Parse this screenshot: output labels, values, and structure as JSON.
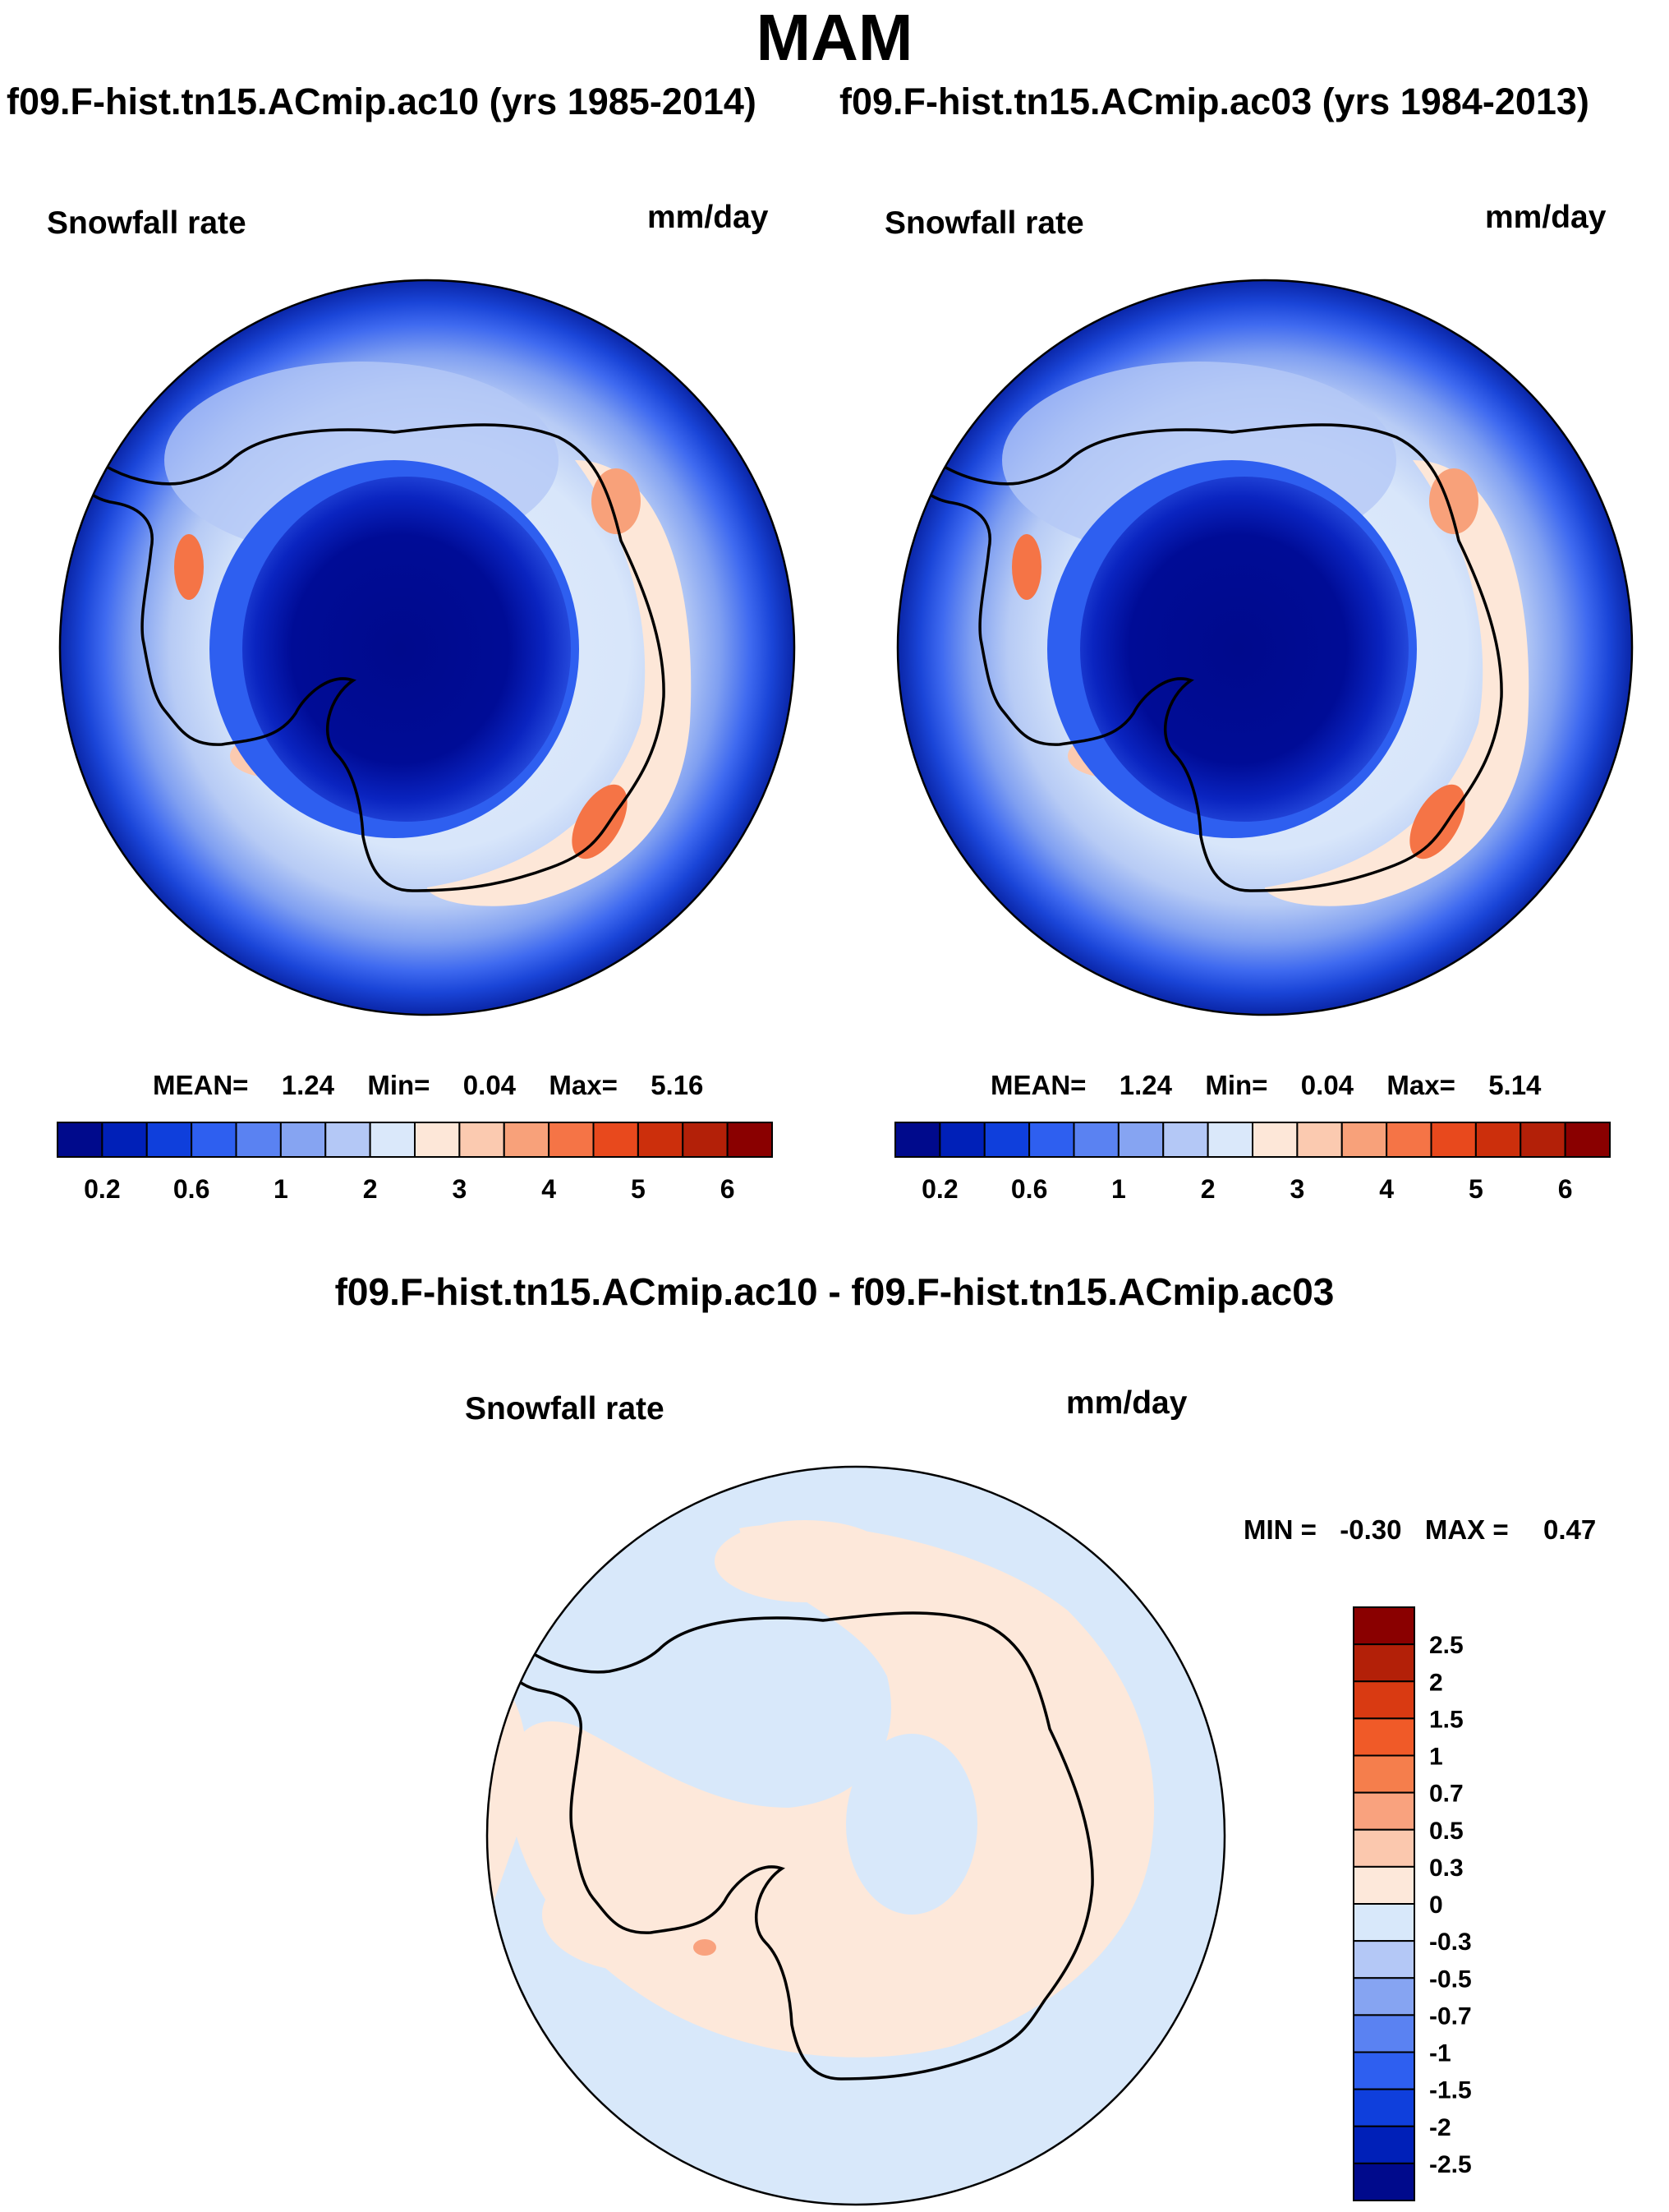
{
  "title": "MAM",
  "subtitle_left": "f09.F-hist.tn15.ACmip.ac10 (yrs 1985-2014)",
  "subtitle_right": "f09.F-hist.tn15.ACmip.ac03 (yrs 1984-2013)",
  "diff_title": "f09.F-hist.tn15.ACmip.ac10 - f09.F-hist.tn15.ACmip.ac03",
  "chart_data": [
    {
      "type": "heatmap",
      "projection": "south-polar-stereographic",
      "variable": "Snowfall rate",
      "units": "mm/day",
      "case": "f09.F-hist.tn15.ACmip.ac10 (yrs 1985-2014)",
      "stats": {
        "mean_label": "MEAN=",
        "mean": "1.24",
        "min_label": "Min=",
        "min": "0.04",
        "max_label": "Max=",
        "max": "5.16"
      },
      "colorbar_ticks": [
        "0.2",
        "0.6",
        "1",
        "2",
        "3",
        "4",
        "5",
        "6"
      ],
      "colorbar_colors": [
        "#000a8c",
        "#0020b8",
        "#0f3fdc",
        "#2e5ff0",
        "#5a82f2",
        "#86a4f2",
        "#b4c8f6",
        "#dae8fa",
        "#fde7d8",
        "#fbcab0",
        "#f8a17a",
        "#f57446",
        "#e8491d",
        "#cc2f0c",
        "#b32008",
        "#8a0000"
      ]
    },
    {
      "type": "heatmap",
      "projection": "south-polar-stereographic",
      "variable": "Snowfall rate",
      "units": "mm/day",
      "case": "f09.F-hist.tn15.ACmip.ac03 (yrs 1984-2013)",
      "stats": {
        "mean_label": "MEAN=",
        "mean": "1.24",
        "min_label": "Min=",
        "min": "0.04",
        "max_label": "Max=",
        "max": "5.14"
      },
      "colorbar_ticks": [
        "0.2",
        "0.6",
        "1",
        "2",
        "3",
        "4",
        "5",
        "6"
      ],
      "colorbar_colors": [
        "#000a8c",
        "#0020b8",
        "#0f3fdc",
        "#2e5ff0",
        "#5a82f2",
        "#86a4f2",
        "#b4c8f6",
        "#dae8fa",
        "#fde7d8",
        "#fbcab0",
        "#f8a17a",
        "#f57446",
        "#e8491d",
        "#cc2f0c",
        "#b32008",
        "#8a0000"
      ]
    },
    {
      "type": "heatmap",
      "projection": "south-polar-stereographic",
      "variable": "Snowfall rate",
      "units": "mm/day",
      "case": "f09.F-hist.tn15.ACmip.ac10 - f09.F-hist.tn15.ACmip.ac03",
      "stats": {
        "min_label": "MIN =",
        "min": "-0.30",
        "max_label": "MAX =",
        "max": "0.47"
      },
      "colorbar_ticks": [
        "2.5",
        "2",
        "1.5",
        "1",
        "0.7",
        "0.5",
        "0.3",
        "0",
        "-0.3",
        "-0.5",
        "-0.7",
        "-1",
        "-1.5",
        "-2",
        "-2.5"
      ],
      "colorbar_colors": [
        "#8a0000",
        "#b32008",
        "#d93a12",
        "#f05a28",
        "#f57e4c",
        "#f9a27e",
        "#fbc8ae",
        "#fde8da",
        "#d8e8fa",
        "#b4c8f6",
        "#86a4f2",
        "#5a82f2",
        "#2e5ff0",
        "#0f3fdc",
        "#0020b8",
        "#000a8c"
      ]
    }
  ]
}
